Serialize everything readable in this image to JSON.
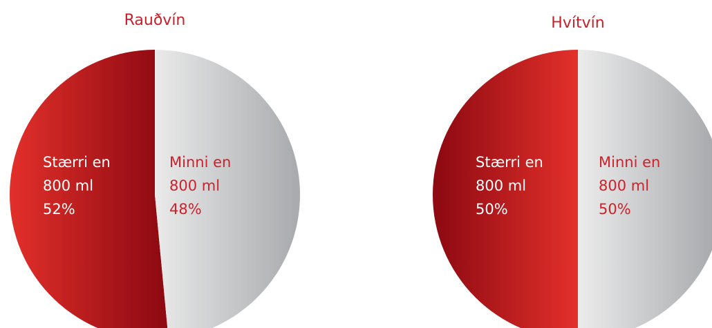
{
  "colors": {
    "title": "#c8202a",
    "red_light": "#e3302a",
    "red_dark": "#8f0a12",
    "grey_light": "#ececec",
    "grey_dark": "#a9abae",
    "label_on_red": "#ffffff",
    "label_on_grey": "#d0202a"
  },
  "chart_data": [
    {
      "type": "pie",
      "title": "Rauðvín",
      "slices": [
        {
          "label_lines": [
            "Stærri en",
            "800 ml"
          ],
          "value": 52,
          "value_label": "52%"
        },
        {
          "label_lines": [
            "Minni en",
            "800 ml"
          ],
          "value": 48,
          "value_label": "48%"
        }
      ]
    },
    {
      "type": "pie",
      "title": "Hvítvín",
      "slices": [
        {
          "label_lines": [
            "Stærri en",
            "800 ml"
          ],
          "value": 50,
          "value_label": "50%"
        },
        {
          "label_lines": [
            "Minni en",
            "800 ml"
          ],
          "value": 50,
          "value_label": "50%"
        }
      ]
    }
  ]
}
